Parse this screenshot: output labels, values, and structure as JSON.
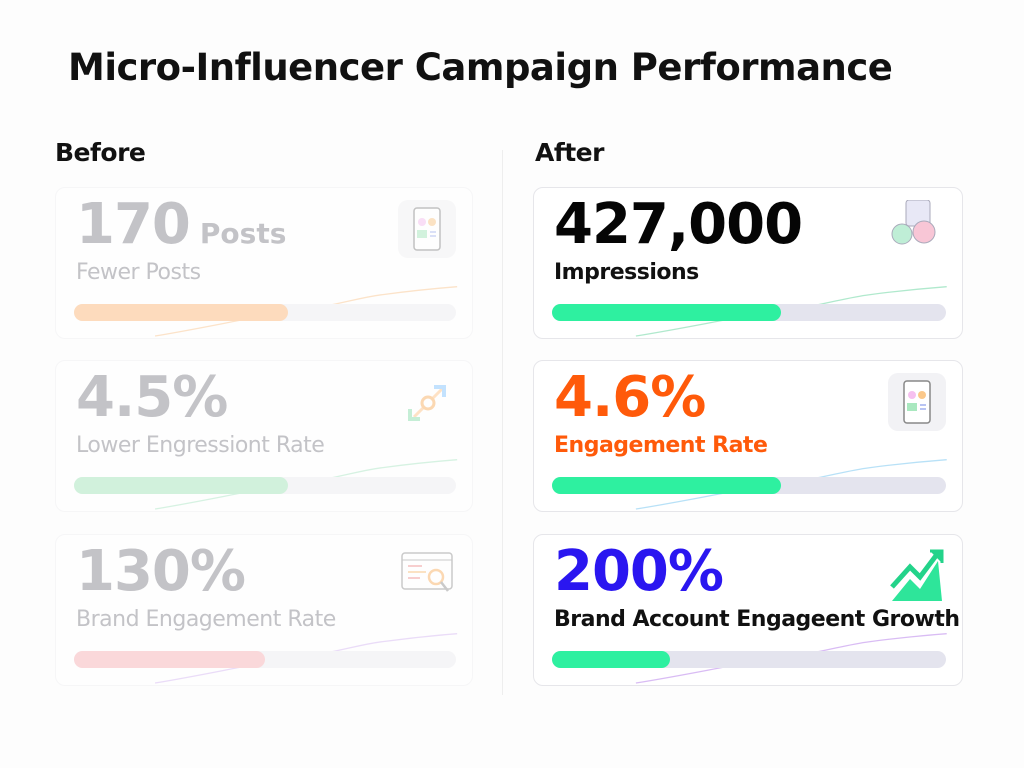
{
  "title": "Micro-Influencer Campaign Performance",
  "before": {
    "heading": "Before",
    "cards": [
      {
        "value": "170",
        "unit": "Posts",
        "label": "Fewer Posts",
        "progress": 0.56,
        "value_color": "#8a8a92",
        "bar_color": "#fdbb7e",
        "icon": "phone-app-icon"
      },
      {
        "value": "4.5%",
        "label": "Lower Engressiont Rate",
        "progress": 0.56,
        "value_color": "#8a8a92",
        "bar_color": "#a7e6bd",
        "icon": "expand-arrows-icon"
      },
      {
        "value": "130%",
        "label": "Brand Engagement Rate",
        "progress": 0.5,
        "value_color": "#8a8a92",
        "bar_color": "#f8b4b8",
        "icon": "browser-search-icon"
      }
    ]
  },
  "after": {
    "heading": "After",
    "cards": [
      {
        "value": "427,000",
        "label": "Impressions",
        "progress": 0.58,
        "value_color": "#050505",
        "bar_color": "#2ef0a0",
        "icon": "social-reactions-icon"
      },
      {
        "value": "4.6%",
        "label": "Engagement Rate",
        "progress": 0.58,
        "value_color": "#ff5a0a",
        "bar_color": "#2ef0a0",
        "icon": "phone-app-icon"
      },
      {
        "value": "200%",
        "label": "Brand Account Engageent Growth",
        "progress": 0.3,
        "value_color": "#2a16f0",
        "bar_color": "#2ef0a0",
        "icon": "growth-chart-icon"
      }
    ]
  }
}
